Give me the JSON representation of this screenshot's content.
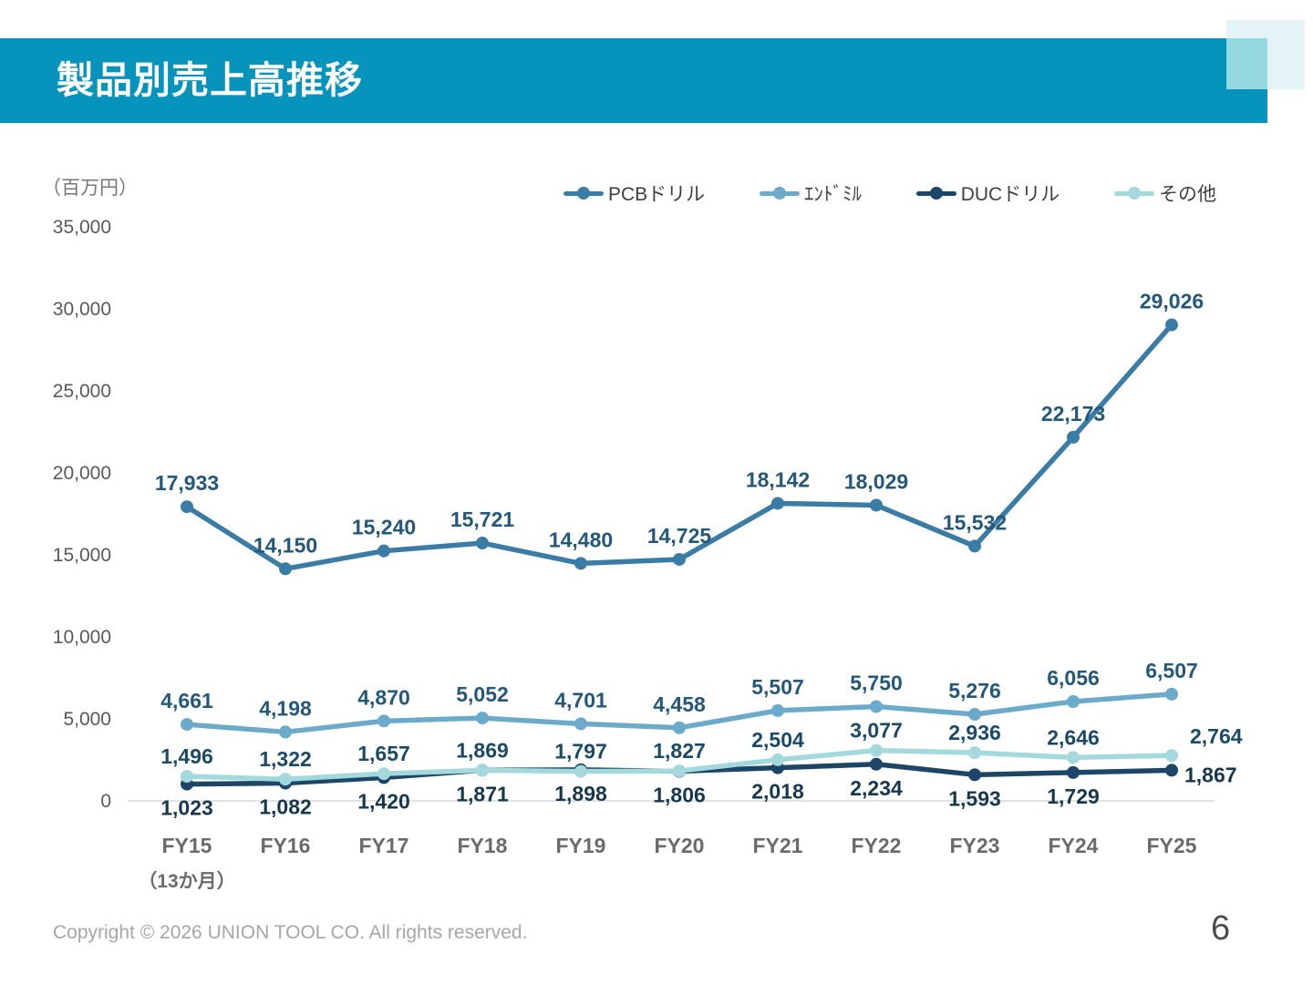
{
  "header": {
    "title": "製品別売上高推移"
  },
  "chart_data": {
    "type": "line",
    "unit_label": "（百万円）",
    "categories": [
      "FY15",
      "FY16",
      "FY17",
      "FY18",
      "FY19",
      "FY20",
      "FY21",
      "FY22",
      "FY23",
      "FY24",
      "FY25"
    ],
    "category_note": {
      "category_index": 0,
      "text": "（13か月）"
    },
    "ylim": [
      0,
      35000
    ],
    "y_tick_step": 5000,
    "y_tick_labels": [
      "0",
      "5,000",
      "10,000",
      "15,000",
      "20,000",
      "25,000",
      "30,000",
      "35,000"
    ],
    "grid": false,
    "legend_position": "top-right",
    "series": [
      {
        "name": "PCBドリル",
        "color": "#3A7CA6",
        "label_color": "#24587A",
        "label_side": "above",
        "values": [
          17933,
          14150,
          15240,
          15721,
          14480,
          14725,
          18142,
          18029,
          15532,
          22173,
          29026
        ]
      },
      {
        "name": "ｴﾝﾄﾞﾐﾙ",
        "color": "#6CAACB",
        "label_color": "#24587A",
        "label_side": "above",
        "values": [
          4661,
          4198,
          4870,
          5052,
          4701,
          4458,
          5507,
          5750,
          5276,
          6056,
          6507
        ]
      },
      {
        "name": "DUCドリル",
        "color": "#1C4568",
        "label_color": "#16384F",
        "label_side": "below",
        "last_label_side": "right",
        "values": [
          1023,
          1082,
          1420,
          1871,
          1898,
          1806,
          2018,
          2234,
          1593,
          1729,
          1867
        ]
      },
      {
        "name": "その他",
        "color": "#A3D8DC",
        "label_color": "#1B4A68",
        "label_side": "above",
        "last_label_side": "above-right",
        "values": [
          1496,
          1322,
          1657,
          1869,
          1797,
          1827,
          2504,
          3077,
          2936,
          2646,
          2764
        ]
      }
    ]
  },
  "footer": {
    "copyright": "Copyright © 2026 UNION TOOL CO. All rights reserved.",
    "page_number": "6"
  },
  "colors": {
    "banner": "#0794BC",
    "corner_light": "#E4F3F5",
    "corner_overlap": "#96D8DF",
    "axis_text": "#595959",
    "x_axis_text": "#6B6B6B",
    "axis_line": "#D9D9D9"
  }
}
